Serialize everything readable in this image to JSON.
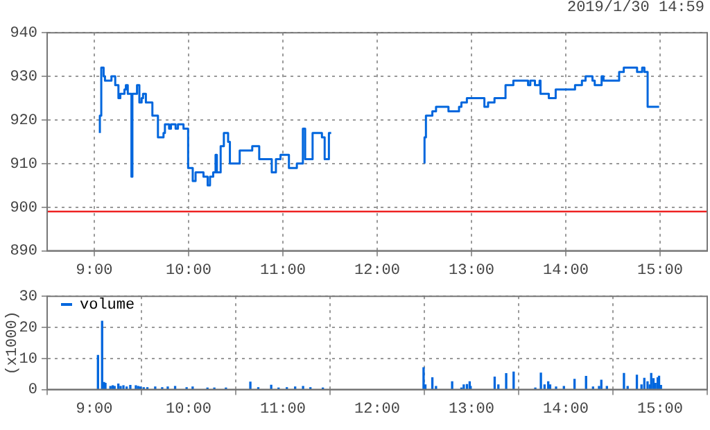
{
  "chart_data": [
    {
      "type": "step",
      "annotations": [
        "2019/1/30 14:59"
      ],
      "x": [
        9.059,
        9.074,
        9.099,
        9.113,
        9.182,
        9.222,
        9.256,
        9.276,
        9.32,
        9.335,
        9.355,
        9.394,
        9.404,
        9.453,
        9.478,
        9.502,
        9.517,
        9.547,
        9.616,
        9.675,
        9.734,
        9.749,
        9.793,
        9.813,
        9.862,
        9.887,
        9.946,
        9.995,
        10.044,
        10.074,
        10.158,
        10.202,
        10.227,
        10.261,
        10.286,
        10.3,
        10.34,
        10.374,
        10.419,
        10.438,
        10.542,
        10.675,
        10.749,
        10.882,
        10.926,
        10.975,
        11.064,
        11.148,
        11.212,
        11.236,
        11.315,
        11.414,
        11.443,
        11.488,
        11.512,
        12.0,
        12.502,
        12.517,
        12.585,
        12.624,
        12.756,
        12.868,
        12.893,
        12.951,
        13.137,
        13.176,
        13.244,
        13.361,
        13.444,
        13.6,
        13.624,
        13.673,
        13.722,
        13.732,
        13.82,
        13.893,
        14.098,
        14.171,
        14.21,
        14.283,
        14.307,
        14.38,
        14.4,
        14.566,
        14.615,
        14.756,
        14.81,
        14.834,
        14.868,
        14.99
      ],
      "values": [
        917,
        921,
        932,
        930,
        929,
        930,
        928,
        925,
        926,
        927,
        928,
        926,
        907,
        926,
        928,
        924,
        925,
        926,
        924,
        921,
        916,
        917,
        919,
        918,
        919,
        918,
        919,
        918,
        909,
        906,
        908,
        907,
        905,
        907,
        908,
        912,
        908,
        914,
        917,
        915,
        910,
        913,
        914,
        911,
        908,
        911,
        912,
        909,
        910,
        918,
        911,
        917,
        916,
        911,
        917,
        null,
        910,
        916,
        921,
        922,
        923,
        922,
        923,
        924,
        925,
        923,
        924,
        925,
        928,
        929,
        928,
        929,
        928,
        929,
        926,
        925,
        927,
        928,
        929,
        930,
        929,
        928,
        930,
        929,
        931,
        932,
        931,
        932,
        931,
        923
      ],
      "color": "#0066dd",
      "ref_lines": [
        {
          "axis": "y",
          "value": 899,
          "color": "#ee2222"
        }
      ],
      "xlim": [
        8.5,
        15.5
      ],
      "xticks": [
        {
          "value": 9,
          "label": "9:00"
        },
        {
          "value": 10,
          "label": "10:00"
        },
        {
          "value": 11,
          "label": "11:00"
        },
        {
          "value": 12,
          "label": "12:00"
        },
        {
          "value": 13,
          "label": "13:00"
        },
        {
          "value": 14,
          "label": "14:00"
        },
        {
          "value": 15,
          "label": "15:00"
        }
      ],
      "ylim": [
        890,
        940
      ],
      "yticks": [
        890,
        900,
        910,
        920,
        930,
        940
      ],
      "grid": true
    },
    {
      "type": "bar",
      "ylabel": "(x1000)",
      "legend": "top left",
      "x": [
        9.039,
        9.083,
        9.103,
        9.118,
        9.171,
        9.196,
        9.215,
        9.255,
        9.279,
        9.309,
        9.343,
        9.382,
        9.441,
        9.465,
        9.49,
        9.524,
        9.563,
        9.646,
        9.72,
        9.779,
        9.857,
        9.979,
        10.043,
        10.2,
        10.273,
        10.396,
        10.655,
        10.739,
        10.876,
        10.954,
        11.042,
        11.13,
        11.214,
        11.292,
        11.424,
        12.492,
        12.511,
        12.585,
        12.624,
        12.795,
        12.893,
        12.918,
        12.952,
        12.981,
        12.991,
        13.246,
        13.285,
        13.368,
        13.447,
        13.677,
        13.736,
        13.775,
        13.814,
        13.834,
        13.897,
        13.98,
        14.093,
        14.215,
        14.289,
        14.353,
        14.377,
        14.436,
        14.617,
        14.656,
        14.754,
        14.803,
        14.833,
        14.867,
        14.891,
        14.906,
        14.93,
        14.95,
        14.975,
        14.989,
        15.009
      ],
      "series": [
        {
          "name": "volume",
          "color": "#0066dd",
          "values": [
            11,
            22,
            2.3,
            2,
            1,
            1.2,
            1,
            1.8,
            1,
            1.2,
            0.8,
            1.3,
            1.2,
            1,
            0.8,
            0.6,
            0.6,
            0.8,
            0.6,
            0.8,
            1,
            0.6,
            0.8,
            0.5,
            0.5,
            0.5,
            2.4,
            0.6,
            1.4,
            0.5,
            0.6,
            0.8,
            1,
            0.6,
            0.5,
            7,
            1.5,
            3.8,
            1,
            2.5,
            0.5,
            1.5,
            1.6,
            2.5,
            1,
            4,
            1.5,
            5.1,
            5.6,
            0.5,
            5.3,
            1.5,
            2.5,
            1.5,
            0.8,
            1,
            3.3,
            4.2,
            0.8,
            1,
            3,
            1,
            5.2,
            1,
            4.6,
            1.5,
            3.6,
            2.5,
            1.5,
            5.2,
            3.5,
            2,
            3.8,
            4.3,
            1.3
          ]
        }
      ],
      "xlim": [
        8.5,
        15.5
      ],
      "xticks": [
        {
          "value": 9,
          "label": "9:00"
        },
        {
          "value": 10,
          "label": "10:00"
        },
        {
          "value": 11,
          "label": "11:00"
        },
        {
          "value": 12,
          "label": "12:00"
        },
        {
          "value": 13,
          "label": "13:00"
        },
        {
          "value": 14,
          "label": "14:00"
        },
        {
          "value": 15,
          "label": "15:00"
        }
      ],
      "ylim": [
        0,
        30
      ],
      "yticks": [
        0,
        10,
        20,
        30
      ],
      "grid": true
    }
  ]
}
